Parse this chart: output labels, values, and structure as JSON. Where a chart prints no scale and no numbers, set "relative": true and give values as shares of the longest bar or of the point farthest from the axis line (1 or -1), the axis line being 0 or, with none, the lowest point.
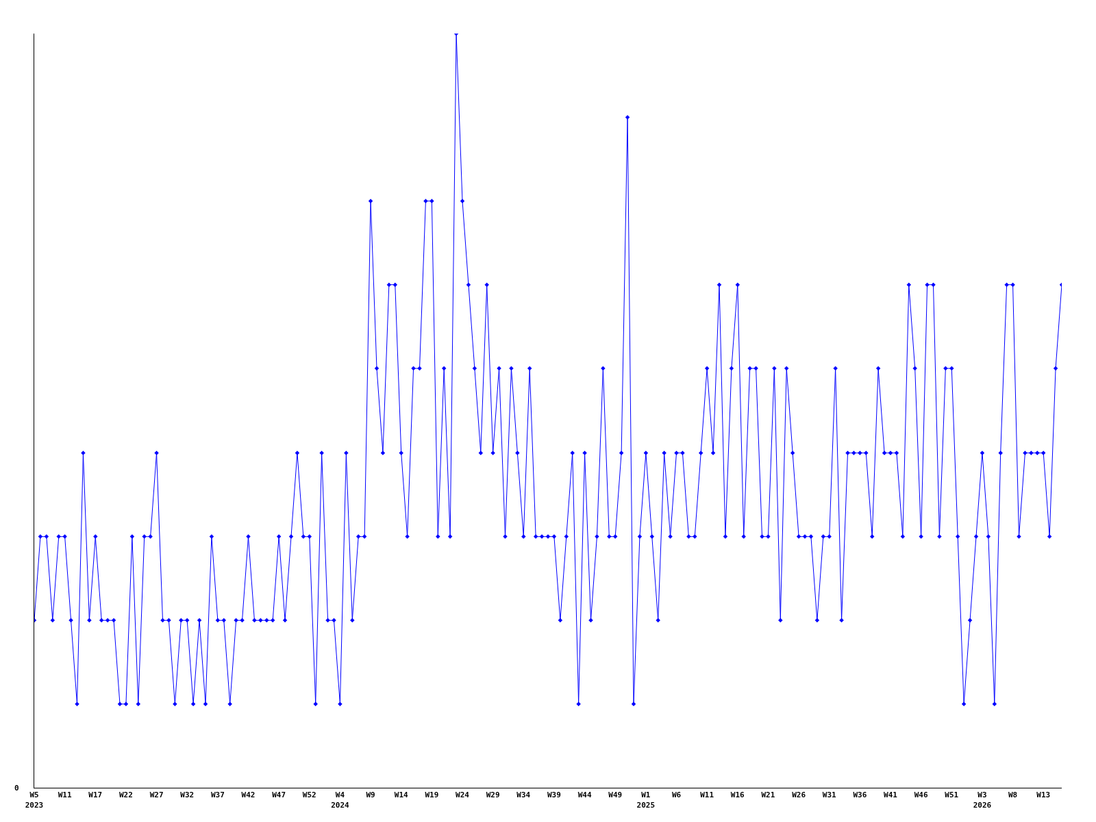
{
  "chart_data": {
    "type": "line",
    "relative": true,
    "color": "#0000ff",
    "marker": "diamond",
    "line_style": "solid",
    "legend": false,
    "annotations": [
      "0"
    ],
    "categories": [
      "W5\n2023",
      null,
      null,
      null,
      null,
      "W11",
      null,
      null,
      null,
      null,
      "W17",
      null,
      null,
      null,
      null,
      "W22",
      null,
      null,
      null,
      null,
      "W27",
      null,
      null,
      null,
      null,
      "W32",
      null,
      null,
      null,
      null,
      "W37",
      null,
      null,
      null,
      null,
      "W42",
      null,
      null,
      null,
      null,
      "W47",
      null,
      null,
      null,
      null,
      "W52",
      null,
      null,
      null,
      null,
      "W4\n2024",
      null,
      null,
      null,
      null,
      "W9",
      null,
      null,
      null,
      null,
      "W14",
      null,
      null,
      null,
      null,
      "W19",
      null,
      null,
      null,
      null,
      "W24",
      null,
      null,
      null,
      null,
      "W29",
      null,
      null,
      null,
      null,
      "W34",
      null,
      null,
      null,
      null,
      "W39",
      null,
      null,
      null,
      null,
      "W44",
      null,
      null,
      null,
      null,
      "W49",
      null,
      null,
      null,
      null,
      "W1\n2025",
      null,
      null,
      null,
      null,
      "W6",
      null,
      null,
      null,
      null,
      "W11",
      null,
      null,
      null,
      null,
      "W16",
      null,
      null,
      null,
      null,
      "W21",
      null,
      null,
      null,
      null,
      "W26",
      null,
      null,
      null,
      null,
      "W31",
      null,
      null,
      null,
      null,
      "W36",
      null,
      null,
      null,
      null,
      "W41",
      null,
      null,
      null,
      null,
      "W46",
      null,
      null,
      null,
      null,
      "W51",
      null,
      null,
      null,
      null,
      "W3\n2026",
      null,
      null,
      null,
      null,
      "W8",
      null,
      null,
      null,
      null,
      "W13",
      null,
      null,
      null
    ],
    "values": [
      0.222,
      0.333,
      0.333,
      0.222,
      0.333,
      0.333,
      0.222,
      0.111,
      0.444,
      0.222,
      0.333,
      0.222,
      0.222,
      0.222,
      0.111,
      0.111,
      0.333,
      0.111,
      0.333,
      0.333,
      0.444,
      0.222,
      0.222,
      0.111,
      0.222,
      0.222,
      0.111,
      0.222,
      0.111,
      0.333,
      0.222,
      0.222,
      0.111,
      0.222,
      0.222,
      0.333,
      0.222,
      0.222,
      0.222,
      0.222,
      0.333,
      0.222,
      0.333,
      0.444,
      0.333,
      0.333,
      0.111,
      0.444,
      0.222,
      0.222,
      0.111,
      0.444,
      0.222,
      0.333,
      0.333,
      0.778,
      0.556,
      0.444,
      0.667,
      0.667,
      0.444,
      0.333,
      0.556,
      0.556,
      0.778,
      0.778,
      0.333,
      0.556,
      0.333,
      1,
      0.778,
      0.667,
      0.556,
      0.444,
      0.667,
      0.444,
      0.556,
      0.333,
      0.556,
      0.444,
      0.333,
      0.556,
      0.333,
      0.333,
      0.333,
      0.333,
      0.222,
      0.333,
      0.444,
      0.111,
      0.444,
      0.222,
      0.333,
      0.556,
      0.333,
      0.333,
      0.444,
      0.889,
      0.111,
      0.333,
      0.444,
      0.333,
      0.222,
      0.444,
      0.333,
      0.444,
      0.444,
      0.333,
      0.333,
      0.444,
      0.556,
      0.444,
      0.667,
      0.333,
      0.556,
      0.667,
      0.333,
      0.556,
      0.556,
      0.333,
      0.333,
      0.556,
      0.222,
      0.556,
      0.444,
      0.333,
      0.333,
      0.333,
      0.222,
      0.333,
      0.333,
      0.556,
      0.222,
      0.444,
      0.444,
      0.444,
      0.444,
      0.333,
      0.556,
      0.444,
      0.444,
      0.444,
      0.333,
      0.667,
      0.556,
      0.333,
      0.667,
      0.667,
      0.333,
      0.556,
      0.556,
      0.333,
      0.111,
      0.222,
      0.333,
      0.444,
      0.333,
      0.111,
      0.444,
      0.667,
      0.667,
      0.333,
      0.444,
      0.444,
      0.444,
      0.444,
      0.333,
      0.556,
      0.667
    ]
  }
}
